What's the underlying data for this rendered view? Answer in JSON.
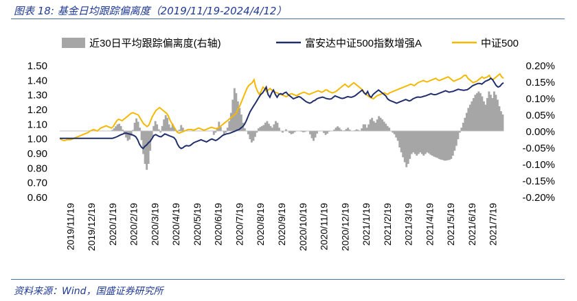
{
  "figure": {
    "title": "图表 18:  基金日均跟踪偏离度（2019/11/19-2024/4/12）",
    "source": "资料来源：Wind，国盛证券研究所"
  },
  "colors": {
    "bar": "#a6a6a6",
    "fund_line": "#1f2d6b",
    "index_line": "#f5b800",
    "title_text": "#1f3a93",
    "rule": "#4a6fa5"
  },
  "chart_data": {
    "type": "line",
    "legend_position": "top",
    "grid": false,
    "y_left": {
      "range": [
        0.6,
        1.5
      ],
      "ticks": [
        "1.50",
        "1.40",
        "1.30",
        "1.20",
        "1.10",
        "1.00",
        "0.90",
        "0.80",
        "0.70",
        "0.60"
      ]
    },
    "y_right": {
      "range": [
        -0.2,
        0.2
      ],
      "ticks": [
        "0.20%",
        "0.15%",
        "0.10%",
        "0.05%",
        "0.00%",
        "-0.05%",
        "-0.10%",
        "-0.15%",
        "-0.20%"
      ]
    },
    "x_ticks": [
      "2019/11/19",
      "2019/12/19",
      "2020/1/19",
      "2020/2/19",
      "2020/3/19",
      "2020/4/19",
      "2020/5/19",
      "2020/6/19",
      "2020/7/19",
      "2020/8/19",
      "2020/9/19",
      "2020/10/19",
      "2020/11/19",
      "2020/12/19",
      "2021/1/19",
      "2021/2/19",
      "2021/3/19",
      "2021/4/19",
      "2021/5/19",
      "2021/6/19",
      "2021/7/19"
    ],
    "series": [
      {
        "name": "近30日平均跟踪偏离度(右轴)",
        "kind": "area",
        "axis": "right",
        "values": [
          0,
          0,
          0,
          0,
          0,
          0,
          0,
          0,
          0,
          0,
          0,
          0,
          0,
          0,
          0,
          0,
          0,
          0,
          0,
          0,
          0,
          0,
          0,
          0,
          0,
          0,
          0,
          0,
          0,
          0,
          0.003,
          0.008,
          0.014,
          0.02,
          0.022,
          0.015,
          0.004,
          -0.008,
          -0.02,
          -0.03,
          -0.026,
          -0.015,
          0.003,
          0.025,
          0.038,
          0.028,
          0.01,
          -0.028,
          -0.07,
          -0.1,
          -0.118,
          -0.1,
          -0.06,
          -0.02,
          0.015,
          0.03,
          0.02,
          0.005,
          -0.005,
          0.015,
          0.035,
          0.048,
          0.04,
          0.02,
          0.01,
          0.022,
          0.01,
          0.0,
          -0.002,
          0.004,
          0.018,
          0.01,
          0.0,
          0.0,
          0.0,
          0.0,
          0.0,
          0.0,
          0.0,
          0.0,
          0.0,
          0.0,
          0.0,
          0.0,
          0.0,
          0.0,
          0.0,
          0.0,
          0.0,
          -0.012,
          -0.005,
          0.01,
          0.028,
          0.012,
          0.0,
          -0.012,
          -0.005,
          0.01,
          0.03,
          0.055,
          0.095,
          0.13,
          0.115,
          0.09,
          0.07,
          0.05,
          0.025,
          0.008,
          0.0,
          -0.01,
          -0.025,
          -0.035,
          -0.03,
          -0.018,
          -0.005,
          0.008,
          0.012,
          0.015,
          0.018,
          0.025,
          0.03,
          0.022,
          0.015,
          0.01,
          0.02,
          0.03,
          0.025,
          0.01,
          0.0,
          -0.005,
          0.0,
          0.005,
          0.0,
          -0.006,
          -0.01,
          -0.008,
          -0.004,
          0.0,
          0.0,
          0.0,
          -0.002,
          -0.004,
          -0.003,
          -0.001,
          0.0,
          -0.01,
          -0.022,
          -0.03,
          -0.02,
          -0.008,
          0.0,
          0.0,
          0.0,
          -0.006,
          -0.012,
          -0.008,
          -0.002,
          0.0,
          0.0,
          0.004,
          0.01,
          0.014,
          0.01,
          0.004,
          0.0,
          0.002,
          0.006,
          0.01,
          0.004,
          0.0,
          -0.001,
          0.002,
          0.005,
          0.003,
          0.0,
          0.008,
          0.02,
          0.02,
          0.01,
          0.02,
          0.035,
          0.04,
          0.03,
          0.025,
          0.035,
          0.045,
          0.04,
          0.035,
          0.028,
          0.022,
          0.015,
          0.01,
          0.0,
          -0.005,
          -0.01,
          -0.02,
          -0.03,
          -0.05,
          -0.065,
          -0.08,
          -0.095,
          -0.11,
          -0.1,
          -0.085,
          -0.07,
          -0.065,
          -0.07,
          -0.075,
          -0.07,
          -0.065,
          -0.07,
          -0.075,
          -0.07,
          -0.065,
          -0.068,
          -0.072,
          -0.075,
          -0.078,
          -0.08,
          -0.082,
          -0.085,
          -0.087,
          -0.088,
          -0.09,
          -0.09,
          -0.089,
          -0.088,
          -0.085,
          -0.075,
          -0.06,
          -0.045,
          -0.025,
          -0.005,
          0.01,
          0.025,
          0.04,
          0.055,
          0.07,
          0.08,
          0.09,
          0.1,
          0.11,
          0.115,
          0.12,
          0.115,
          0.105,
          0.09,
          0.08,
          0.1,
          0.12,
          0.11,
          0.1,
          0.12,
          0.11,
          0.095,
          0.075,
          0.06,
          0.05
        ]
      },
      {
        "name": "富安达中证500指数增强A",
        "kind": "line",
        "axis": "left",
        "values": [
          1.0,
          1.0,
          1.0,
          1.0,
          1.0,
          1.0,
          1.0,
          1.0,
          1.0,
          1.0,
          1.0,
          1.0,
          1.0,
          1.0,
          1.0,
          1.0,
          1.0,
          1.0,
          1.0,
          1.0,
          1.0,
          1.0,
          1.0,
          1.0,
          1.0,
          1.0,
          1.0,
          1.0,
          1.0,
          1.0,
          1.003,
          1.008,
          1.013,
          1.02,
          1.025,
          1.03,
          1.035,
          1.034,
          1.03,
          1.028,
          1.024,
          1.018,
          1.01,
          0.99,
          0.96,
          0.94,
          0.93,
          0.945,
          0.955,
          0.97,
          0.98,
          1.0,
          1.02,
          1.025,
          1.018,
          1.012,
          1.01,
          1.02,
          1.03,
          1.025,
          1.02,
          1.015,
          1.01,
          1.005,
          0.99,
          0.96,
          0.94,
          0.93,
          0.935,
          0.945,
          0.95,
          0.948,
          0.95,
          0.96,
          0.97,
          0.975,
          0.98,
          0.985,
          0.99,
          0.985,
          0.98,
          0.975,
          0.982,
          0.99,
          0.995,
          0.99,
          0.985,
          0.99,
          1.0,
          1.01,
          1.02,
          1.025,
          1.03,
          1.032,
          1.035,
          1.04,
          1.045,
          1.05,
          1.056,
          1.06,
          1.07,
          1.08,
          1.095,
          1.12,
          1.15,
          1.18,
          1.2,
          1.22,
          1.24,
          1.26,
          1.28,
          1.3,
          1.31,
          1.33,
          1.35,
          1.3,
          1.28,
          1.31,
          1.33,
          1.3,
          1.28,
          1.3,
          1.305,
          1.3,
          1.31,
          1.315,
          1.3,
          1.29,
          1.28,
          1.27,
          1.275,
          1.28,
          1.285,
          1.28,
          1.27,
          1.26,
          1.25,
          1.245,
          1.24,
          1.245,
          1.255,
          1.26,
          1.27,
          1.275,
          1.278,
          1.282,
          1.278,
          1.272,
          1.27,
          1.268,
          1.27,
          1.28,
          1.29,
          1.285,
          1.28,
          1.275,
          1.272,
          1.275,
          1.28,
          1.285,
          1.282,
          1.28,
          1.285,
          1.29,
          1.3,
          1.31,
          1.32,
          1.33,
          1.31,
          1.3,
          1.32,
          1.29,
          1.28,
          1.3,
          1.31,
          1.32,
          1.33,
          1.32,
          1.31,
          1.3,
          1.29,
          1.27,
          1.26,
          1.255,
          1.25,
          1.245,
          1.24,
          1.245,
          1.25,
          1.255,
          1.26,
          1.265,
          1.26,
          1.255,
          1.26,
          1.27,
          1.275,
          1.28,
          1.282,
          1.28,
          1.283,
          1.287,
          1.29,
          1.295,
          1.3,
          1.305,
          1.3,
          1.298,
          1.3,
          1.305,
          1.31,
          1.315,
          1.32,
          1.325,
          1.32,
          1.315,
          1.318,
          1.32,
          1.325,
          1.33,
          1.335,
          1.332,
          1.33,
          1.328,
          1.33,
          1.332,
          1.34,
          1.35,
          1.36,
          1.365,
          1.37,
          1.375,
          1.375,
          1.37,
          1.38,
          1.39,
          1.395,
          1.4,
          1.41,
          1.4,
          1.38,
          1.36,
          1.35,
          1.355,
          1.37,
          1.38
        ]
      },
      {
        "name": "中证500",
        "kind": "line",
        "axis": "left",
        "values": [
          1.0,
          0.99,
          0.985,
          0.985,
          0.99,
          0.99,
          0.99,
          0.995,
          1.0,
          1.005,
          1.01,
          1.015,
          1.02,
          1.025,
          1.03,
          1.035,
          1.04,
          1.05,
          1.055,
          1.06,
          1.055,
          1.05,
          1.06,
          1.07,
          1.075,
          1.08,
          1.085,
          1.08,
          1.075,
          1.07,
          1.08,
          1.1,
          1.12,
          1.13,
          1.125,
          1.12,
          1.13,
          1.14,
          1.15,
          1.16,
          1.17,
          1.175,
          1.17,
          1.165,
          1.16,
          1.14,
          1.12,
          1.1,
          1.09,
          1.08,
          1.09,
          1.12,
          1.15,
          1.17,
          1.19,
          1.2,
          1.21,
          1.2,
          1.19,
          1.18,
          1.17,
          1.15,
          1.12,
          1.1,
          1.08,
          1.06,
          1.04,
          1.035,
          1.04,
          1.045,
          1.05,
          1.055,
          1.06,
          1.06,
          1.06,
          1.055,
          1.06,
          1.065,
          1.07,
          1.065,
          1.06,
          1.055,
          1.06,
          1.065,
          1.07,
          1.075,
          1.072,
          1.068,
          1.065,
          1.07,
          1.08,
          1.09,
          1.1,
          1.11,
          1.12,
          1.13,
          1.14,
          1.15,
          1.16,
          1.17,
          1.2,
          1.22,
          1.25,
          1.28,
          1.31,
          1.34,
          1.36,
          1.37,
          1.38,
          1.4,
          1.35,
          1.32,
          1.3,
          1.32,
          1.35,
          1.34,
          1.32,
          1.33,
          1.34,
          1.33,
          1.32,
          1.315,
          1.31,
          1.305,
          1.3,
          1.295,
          1.29,
          1.285,
          1.29,
          1.3,
          1.305,
          1.3,
          1.295,
          1.29,
          1.3,
          1.305,
          1.31,
          1.315,
          1.31,
          1.305,
          1.3,
          1.305,
          1.31,
          1.315,
          1.32,
          1.325,
          1.32,
          1.315,
          1.32,
          1.33,
          1.33,
          1.32,
          1.315,
          1.31,
          1.315,
          1.32,
          1.33,
          1.34,
          1.35,
          1.36,
          1.37,
          1.36,
          1.35,
          1.36,
          1.37,
          1.38,
          1.37,
          1.36,
          1.35,
          1.34,
          1.33,
          1.31,
          1.3,
          1.29,
          1.28,
          1.275,
          1.27,
          1.28,
          1.29,
          1.295,
          1.3,
          1.305,
          1.31,
          1.305,
          1.3,
          1.31,
          1.315,
          1.32,
          1.325,
          1.33,
          1.335,
          1.34,
          1.345,
          1.35,
          1.355,
          1.36,
          1.365,
          1.37,
          1.365,
          1.36,
          1.37,
          1.38,
          1.385,
          1.39,
          1.395,
          1.39,
          1.385,
          1.39,
          1.395,
          1.4,
          1.405,
          1.41,
          1.4,
          1.395,
          1.4,
          1.405,
          1.41,
          1.415,
          1.42,
          1.41,
          1.4,
          1.39,
          1.395,
          1.4,
          1.405,
          1.41,
          1.42,
          1.43,
          1.43,
          1.41,
          1.4,
          1.39,
          1.38,
          1.385,
          1.39,
          1.4,
          1.41,
          1.42,
          1.41,
          1.415,
          1.42,
          1.43,
          1.41,
          1.4,
          1.41,
          1.42,
          1.43,
          1.44,
          1.42,
          1.41
        ]
      }
    ]
  }
}
